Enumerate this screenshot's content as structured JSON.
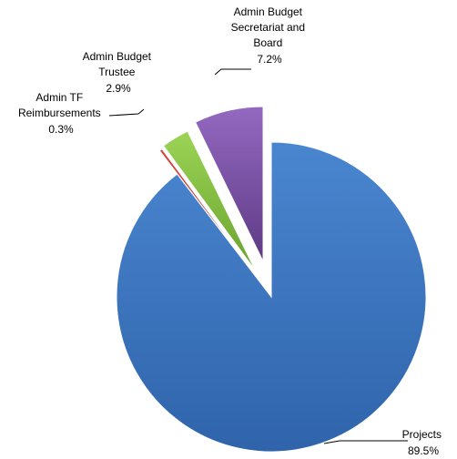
{
  "chart_data": {
    "type": "pie",
    "title": "",
    "exploded": true,
    "slices": [
      {
        "label": "Projects",
        "value": 89.5,
        "value_text": "89.5%",
        "color": "#3d78c6"
      },
      {
        "label": "Admin TF Reimbursements",
        "label_lines": [
          "Admin TF",
          "Reimbursements"
        ],
        "value": 0.3,
        "value_text": "0.3%",
        "color": "#c0392b"
      },
      {
        "label": "Admin Budget Trustee",
        "label_lines": [
          "Admin Budget",
          "Trustee"
        ],
        "value": 2.9,
        "value_text": "2.9%",
        "color": "#8bc34a"
      },
      {
        "label": "Admin Budget Secretariat and Board",
        "label_lines": [
          "Admin Budget",
          "Secretariat and",
          "Board"
        ],
        "value": 7.2,
        "value_text": "7.2%",
        "color": "#7e57a8"
      }
    ]
  }
}
